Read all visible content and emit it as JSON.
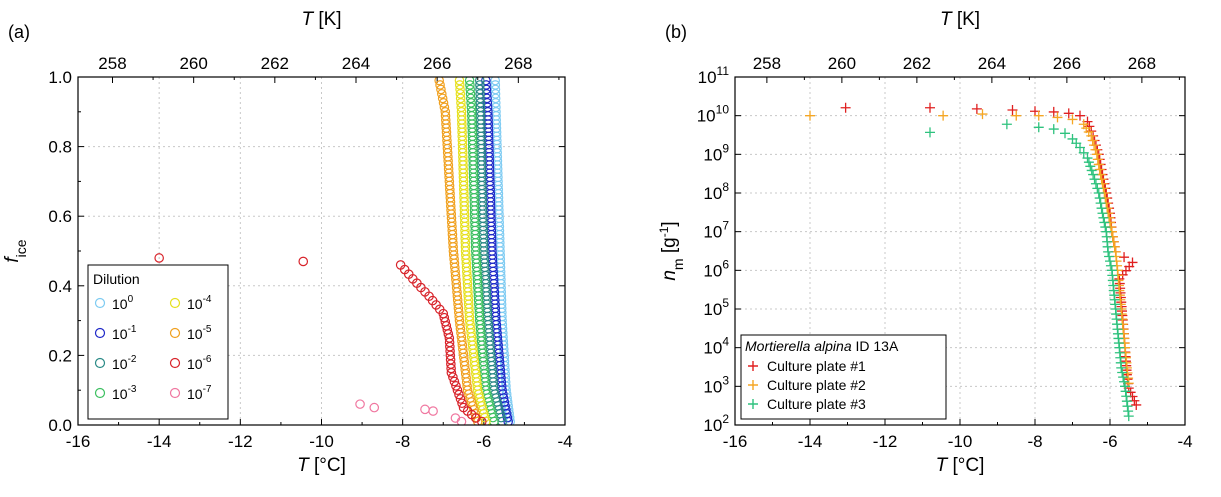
{
  "chart_data": [
    {
      "panel": "(a)",
      "type": "scatter",
      "xlabel": "T [°C]",
      "xlabel_top": "T [K]",
      "ylabel": "f_ice",
      "xlim": [
        -16,
        -4
      ],
      "ylim": [
        0.0,
        1.0
      ],
      "grid": true,
      "x_ticks": [
        "-16",
        "-14",
        "-12",
        "-10",
        "-8",
        "-6",
        "-4"
      ],
      "x_tick_values": [
        -16,
        -14,
        -12,
        -10,
        -8,
        -6,
        -4
      ],
      "x_top_ticks": [
        "258",
        "260",
        "262",
        "264",
        "266",
        "268"
      ],
      "x_top_tick_values_K": [
        258,
        260,
        262,
        264,
        266,
        268
      ],
      "y_ticks": [
        "0.0",
        "0.2",
        "0.4",
        "0.6",
        "0.8",
        "1.0"
      ],
      "y_tick_values": [
        0.0,
        0.2,
        0.4,
        0.6,
        0.8,
        1.0
      ],
      "legend": {
        "title": "Dilution",
        "placement": "bottom-left",
        "columns": 2
      },
      "series": [
        {
          "name": "10^0",
          "base": "10",
          "exp": "0",
          "color": "#7ecbf2",
          "points": [
            [
              -5.35,
              0.01
            ],
            [
              -5.45,
              0.1
            ],
            [
              -5.55,
              0.3
            ],
            [
              -5.6,
              0.5
            ],
            [
              -5.65,
              0.7
            ],
            [
              -5.7,
              0.9
            ],
            [
              -5.72,
              0.99
            ]
          ]
        },
        {
          "name": "10^-1",
          "base": "10",
          "exp": "-1",
          "color": "#1f28c8",
          "points": [
            [
              -5.4,
              0.01
            ],
            [
              -5.55,
              0.1
            ],
            [
              -5.7,
              0.3
            ],
            [
              -5.8,
              0.5
            ],
            [
              -5.85,
              0.7
            ],
            [
              -5.9,
              0.9
            ],
            [
              -5.95,
              0.99
            ]
          ]
        },
        {
          "name": "10^-2",
          "base": "10",
          "exp": "-2",
          "color": "#2a8a86",
          "points": [
            [
              -5.55,
              0.01
            ],
            [
              -5.75,
              0.1
            ],
            [
              -5.9,
              0.3
            ],
            [
              -6.0,
              0.5
            ],
            [
              -6.05,
              0.7
            ],
            [
              -6.08,
              0.9
            ],
            [
              -6.1,
              0.99
            ]
          ]
        },
        {
          "name": "10^-3",
          "base": "10",
          "exp": "-3",
          "color": "#3cc060",
          "points": [
            [
              -5.75,
              0.01
            ],
            [
              -5.95,
              0.1
            ],
            [
              -6.1,
              0.3
            ],
            [
              -6.2,
              0.5
            ],
            [
              -6.25,
              0.7
            ],
            [
              -6.3,
              0.9
            ],
            [
              -6.35,
              0.99
            ]
          ]
        },
        {
          "name": "10^-4",
          "base": "10",
          "exp": "-4",
          "color": "#e6e01e",
          "points": [
            [
              -5.95,
              0.01
            ],
            [
              -6.15,
              0.1
            ],
            [
              -6.35,
              0.3
            ],
            [
              -6.45,
              0.5
            ],
            [
              -6.5,
              0.7
            ],
            [
              -6.55,
              0.9
            ],
            [
              -6.6,
              0.99
            ]
          ]
        },
        {
          "name": "10^-5",
          "base": "10",
          "exp": "-5",
          "color": "#f0a01e",
          "points": [
            [
              -6.15,
              0.01
            ],
            [
              -6.4,
              0.1
            ],
            [
              -6.6,
              0.3
            ],
            [
              -6.75,
              0.5
            ],
            [
              -6.85,
              0.7
            ],
            [
              -6.95,
              0.9
            ],
            [
              -7.1,
              0.99
            ]
          ]
        },
        {
          "name": "10^-6",
          "base": "10",
          "exp": "-6",
          "color": "#d8232a",
          "points": [
            [
              -14.0,
              0.48
            ],
            [
              -10.45,
              0.47
            ],
            [
              -8.05,
              0.46
            ],
            [
              -7.75,
              0.42
            ],
            [
              -7.35,
              0.37
            ],
            [
              -7.0,
              0.32
            ],
            [
              -6.85,
              0.25
            ],
            [
              -6.8,
              0.15
            ],
            [
              -6.5,
              0.05
            ],
            [
              -6.2,
              0.02
            ],
            [
              -6.05,
              0.01
            ]
          ]
        },
        {
          "name": "10^-7",
          "base": "10",
          "exp": "-7",
          "color": "#f077a0",
          "points": [
            [
              -9.05,
              0.06
            ],
            [
              -8.7,
              0.05
            ],
            [
              -7.45,
              0.045
            ],
            [
              -7.25,
              0.04
            ],
            [
              -6.7,
              0.02
            ],
            [
              -6.55,
              0.01
            ]
          ]
        }
      ]
    },
    {
      "panel": "(b)",
      "type": "scatter",
      "xlabel": "T [°C]",
      "xlabel_top": "T [K]",
      "ylabel": "n_m [g^-1]",
      "xlim": [
        -16,
        -4
      ],
      "ylim": [
        100,
        100000000000
      ],
      "y_scale": "log",
      "grid": true,
      "x_ticks": [
        "-16",
        "-14",
        "-12",
        "-10",
        "-8",
        "-6",
        "-4"
      ],
      "x_tick_values": [
        -16,
        -14,
        -12,
        -10,
        -8,
        -6,
        -4
      ],
      "x_top_ticks": [
        "258",
        "260",
        "262",
        "264",
        "266",
        "268"
      ],
      "x_top_tick_values_K": [
        258,
        260,
        262,
        264,
        266,
        268
      ],
      "y_tick_exponents": [
        "2",
        "3",
        "4",
        "5",
        "6",
        "7",
        "8",
        "9",
        "10",
        "11"
      ],
      "legend": {
        "title": "Mortierella alpina",
        "title_suffix": "ID 13A",
        "placement": "bottom-left"
      },
      "series": [
        {
          "name": "Culture plate #1",
          "color": "#e02020",
          "points": [
            [
              -13.05,
              16000000000.0
            ],
            [
              -10.8,
              16000000000.0
            ],
            [
              -9.55,
              15000000000.0
            ],
            [
              -8.6,
              14000000000.0
            ],
            [
              -8.0,
              13000000000.0
            ],
            [
              -7.5,
              12500000000.0
            ],
            [
              -7.1,
              11500000000.0
            ],
            [
              -6.8,
              10000000000.0
            ],
            [
              -6.6,
              7000000000.0
            ],
            [
              -6.45,
              3000000000.0
            ],
            [
              -6.3,
              1000000000.0
            ],
            [
              -6.2,
              300000000.0
            ],
            [
              -6.1,
              100000000.0
            ],
            [
              -6.0,
              30000000.0
            ],
            [
              -5.95,
              10000000.0
            ],
            [
              -5.85,
              3000000.0
            ],
            [
              -5.4,
              1600000.0
            ],
            [
              -5.75,
              600000.0
            ],
            [
              -5.7,
              150000.0
            ],
            [
              -5.65,
              40000.0
            ],
            [
              -5.6,
              10000.0
            ],
            [
              -5.55,
              2000.0
            ],
            [
              -5.5,
              900.0
            ],
            [
              -5.3,
              330.0
            ]
          ]
        },
        {
          "name": "Culture plate #2",
          "color": "#f5a623",
          "points": [
            [
              -14.0,
              10000000000.0
            ],
            [
              -10.45,
              10000000000.0
            ],
            [
              -9.4,
              11000000000.0
            ],
            [
              -8.5,
              10000000000.0
            ],
            [
              -7.9,
              10000000000.0
            ],
            [
              -7.4,
              9000000000.0
            ],
            [
              -7.0,
              8000000000.0
            ],
            [
              -6.7,
              6000000000.0
            ],
            [
              -6.5,
              3000000000.0
            ],
            [
              -6.35,
              1000000000.0
            ],
            [
              -6.25,
              300000000.0
            ],
            [
              -6.15,
              100000000.0
            ],
            [
              -6.05,
              30000000.0
            ],
            [
              -5.95,
              10000000.0
            ],
            [
              -5.85,
              3000000.0
            ],
            [
              -5.8,
              1000000.0
            ],
            [
              -5.75,
              300000.0
            ],
            [
              -5.7,
              100000.0
            ],
            [
              -5.65,
              30000.0
            ],
            [
              -5.6,
              10000.0
            ],
            [
              -5.55,
              3000.0
            ],
            [
              -5.5,
              1200.0
            ]
          ]
        },
        {
          "name": "Culture plate #3",
          "color": "#2ec27e",
          "points": [
            [
              -10.8,
              3700000000.0
            ],
            [
              -8.75,
              6000000000.0
            ],
            [
              -7.9,
              5000000000.0
            ],
            [
              -7.5,
              4500000000.0
            ],
            [
              -7.2,
              3500000000.0
            ],
            [
              -7.0,
              2500000000.0
            ],
            [
              -6.8,
              1500000000.0
            ],
            [
              -6.6,
              800000000.0
            ],
            [
              -6.45,
              300000000.0
            ],
            [
              -6.3,
              100000000.0
            ],
            [
              -6.2,
              30000000.0
            ],
            [
              -6.1,
              10000000.0
            ],
            [
              -6.05,
              3000000.0
            ],
            [
              -5.95,
              1000000.0
            ],
            [
              -5.9,
              300000.0
            ],
            [
              -5.85,
              100000.0
            ],
            [
              -5.8,
              30000.0
            ],
            [
              -5.75,
              10000.0
            ],
            [
              -5.7,
              3000.0
            ],
            [
              -5.6,
              1000.0
            ],
            [
              -5.5,
              170.0
            ]
          ]
        }
      ]
    }
  ]
}
